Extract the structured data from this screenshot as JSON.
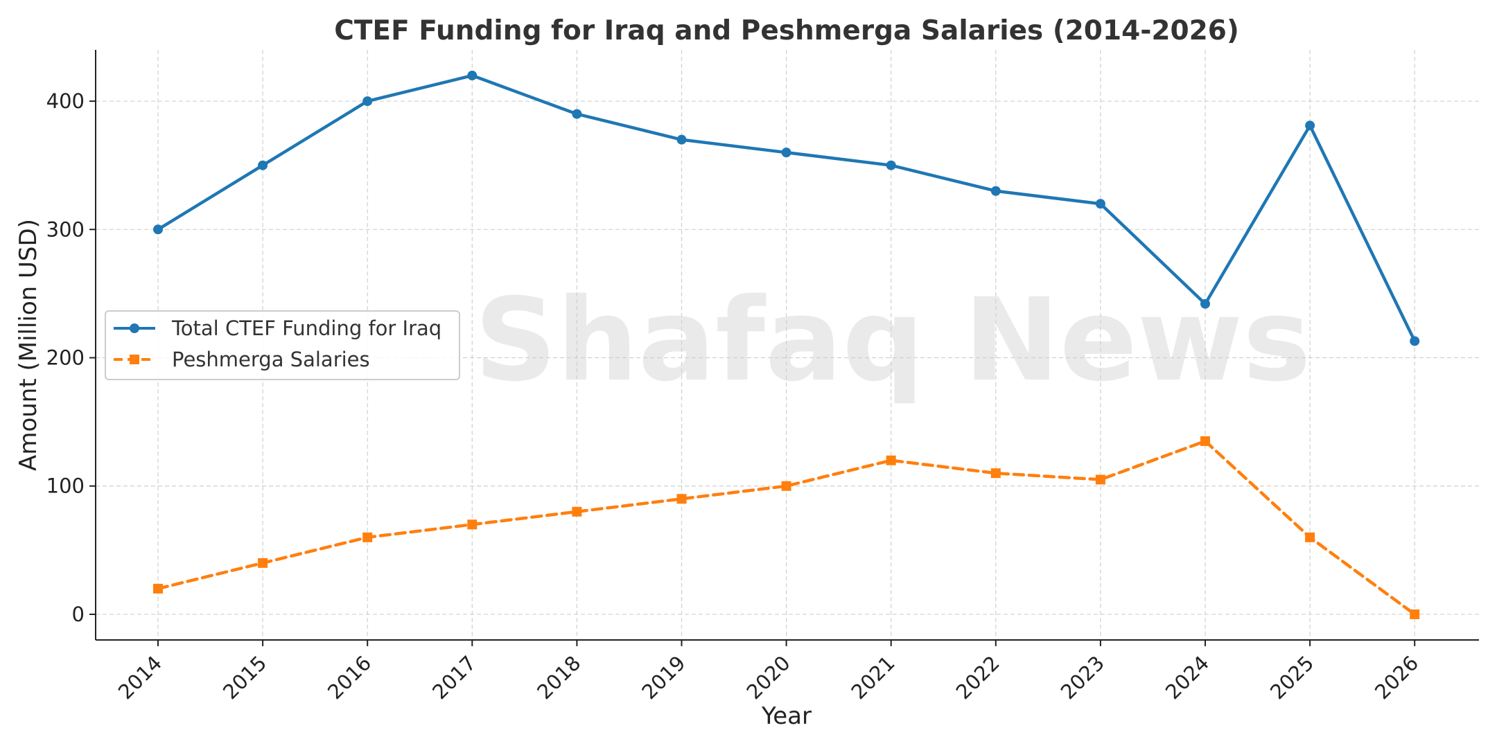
{
  "chart_data": {
    "type": "line",
    "title": "CTEF Funding for Iraq and Peshmerga Salaries (2014-2026)",
    "xlabel": "Year",
    "ylabel": "Amount (Million USD)",
    "categories": [
      "2014",
      "2015",
      "2016",
      "2017",
      "2018",
      "2019",
      "2020",
      "2021",
      "2022",
      "2023",
      "2024",
      "2025",
      "2026"
    ],
    "ylim": [
      -20,
      440
    ],
    "yticks": [
      0,
      100,
      200,
      300,
      400
    ],
    "grid": true,
    "legend_position": "center-left",
    "series": [
      {
        "name": "Total CTEF Funding for Iraq",
        "values": [
          300,
          350,
          400,
          420,
          390,
          370,
          360,
          350,
          330,
          320,
          242,
          381,
          213
        ],
        "color": "#1f77b4",
        "marker": "circle",
        "line_style": "solid"
      },
      {
        "name": "Peshmerga Salaries",
        "values": [
          20,
          40,
          60,
          70,
          80,
          90,
          100,
          120,
          110,
          105,
          135,
          60,
          0
        ],
        "color": "#ff7f0e",
        "marker": "square",
        "line_style": "dashed"
      }
    ]
  },
  "watermark": "Shafaq News"
}
